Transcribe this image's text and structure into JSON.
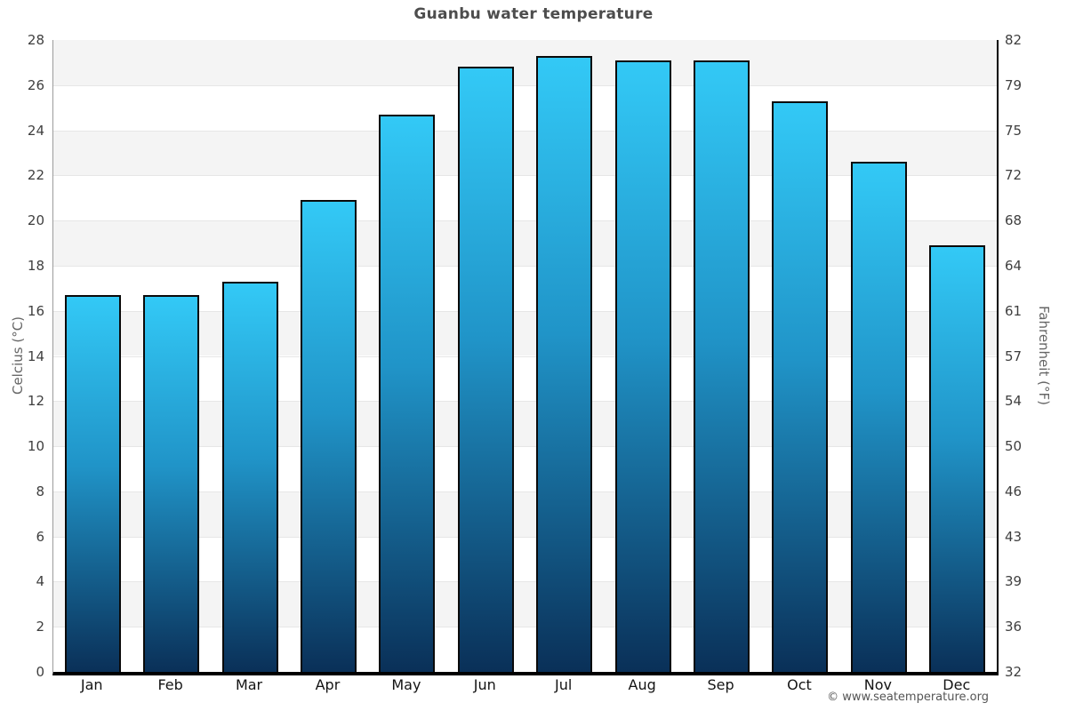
{
  "title": "Guanbu water temperature",
  "footer": "© www.seatemperature.org",
  "chart_data": {
    "type": "bar",
    "title": "Guanbu water temperature",
    "categories": [
      "Jan",
      "Feb",
      "Mar",
      "Apr",
      "May",
      "Jun",
      "Jul",
      "Aug",
      "Sep",
      "Oct",
      "Nov",
      "Dec"
    ],
    "values": [
      16.7,
      16.7,
      17.3,
      20.9,
      24.7,
      26.8,
      27.3,
      27.1,
      27.1,
      25.3,
      22.6,
      18.9
    ],
    "ylabel_left": "Celcius (°C)",
    "ylabel_right": "Fahrenheit (°F)",
    "y_left_ticks": [
      0,
      2,
      4,
      6,
      8,
      10,
      12,
      14,
      16,
      18,
      20,
      22,
      24,
      26,
      28
    ],
    "y_right_ticks": [
      "32",
      "36",
      "39",
      "43",
      "46",
      "50",
      "54",
      "57",
      "61",
      "64",
      "68",
      "72",
      "75",
      "79",
      "82"
    ],
    "ylim": [
      0,
      28
    ],
    "grid": "alternating-horizontal-bands",
    "legend": "none",
    "colors": {
      "bar_top": "#33c9f6",
      "bar_mid": "#2094c8",
      "bar_bottom": "#0a3058",
      "bar_border": "#0a0a0a",
      "band_shade": "#f4f4f4",
      "gridline": "#e6e6e6",
      "axis_left": "#9b9b9b",
      "axis_dark": "#000000",
      "title_color": "#4d4d4d"
    }
  }
}
